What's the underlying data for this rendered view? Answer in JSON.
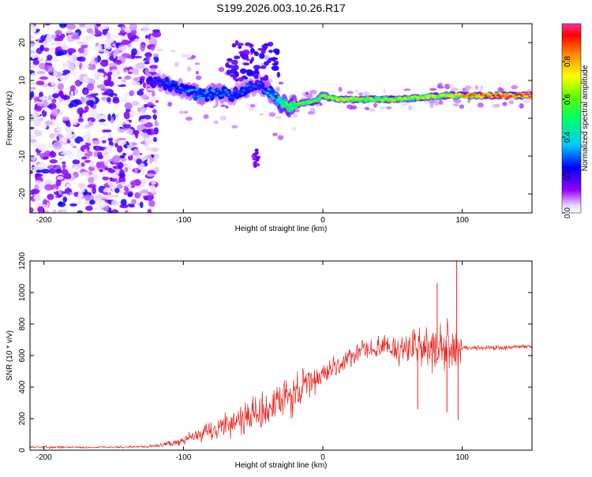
{
  "title": "S199.2026.003.10.26.R17",
  "chart_data": [
    {
      "type": "heatmap",
      "xlabel": "Height of straight line (km)",
      "ylabel": "Frequency (Hz)",
      "xlim": [
        -210,
        150
      ],
      "ylim": [
        -25,
        25
      ],
      "xticks": [
        -200,
        -100,
        0,
        100
      ],
      "yticks": [
        -20,
        -10,
        0,
        10,
        20
      ],
      "colorbar": {
        "label": "Normalized spectral amplitude",
        "range": [
          0,
          1
        ],
        "ticks": [
          0.0,
          0.2,
          0.4,
          0.6,
          0.8
        ]
      },
      "ridge": {
        "height_km": [
          -125,
          -110,
          -95,
          -85,
          -75,
          -65,
          -55,
          -45,
          -35,
          -30,
          -25,
          -15,
          -5,
          0,
          10,
          30,
          50,
          70,
          90,
          100,
          110,
          130,
          150
        ],
        "frequency_hz": [
          10,
          9,
          7,
          6,
          7,
          6,
          8,
          9,
          6,
          4,
          3,
          4,
          4.5,
          6,
          5,
          5,
          5,
          5.5,
          6,
          6,
          6,
          6,
          6
        ],
        "amplitude": [
          0.25,
          0.3,
          0.35,
          0.35,
          0.35,
          0.3,
          0.3,
          0.3,
          0.4,
          0.55,
          0.6,
          0.6,
          0.6,
          0.65,
          0.7,
          0.65,
          0.65,
          0.7,
          0.75,
          0.85,
          0.9,
          0.95,
          0.95
        ]
      },
      "noise_region_km": [
        -210,
        -125
      ]
    },
    {
      "type": "line",
      "xlabel": "Height of straight line (km)",
      "ylabel": "SNR (10 * v/v)",
      "xlim": [
        -210,
        150
      ],
      "ylim": [
        0,
        1200
      ],
      "xticks": [
        -200,
        -100,
        0,
        100
      ],
      "yticks": [
        0,
        200,
        400,
        600,
        800,
        1000,
        1200
      ],
      "series": [
        {
          "name": "SNR",
          "color": "#e8221b",
          "x": [
            -210,
            -170,
            -140,
            -120,
            -100,
            -80,
            -60,
            -40,
            -25,
            -10,
            0,
            15,
            30,
            50,
            65,
            80,
            90,
            97,
            100,
            110,
            130,
            150
          ],
          "y": [
            20,
            18,
            20,
            25,
            60,
            120,
            200,
            250,
            330,
            420,
            480,
            560,
            640,
            650,
            640,
            640,
            650,
            640,
            650,
            650,
            650,
            660
          ],
          "amplitude": [
            8,
            6,
            6,
            10,
            30,
            70,
            110,
            130,
            150,
            110,
            80,
            70,
            60,
            90,
            140,
            160,
            160,
            200,
            15,
            15,
            15,
            15
          ],
          "spikes": [
            {
              "x": 82,
              "y": 1060
            },
            {
              "x": 96,
              "y": 1200
            },
            {
              "x": 97,
              "y": 190
            },
            {
              "x": 68,
              "y": 260
            },
            {
              "x": 89,
              "y": 240
            }
          ]
        }
      ]
    }
  ]
}
